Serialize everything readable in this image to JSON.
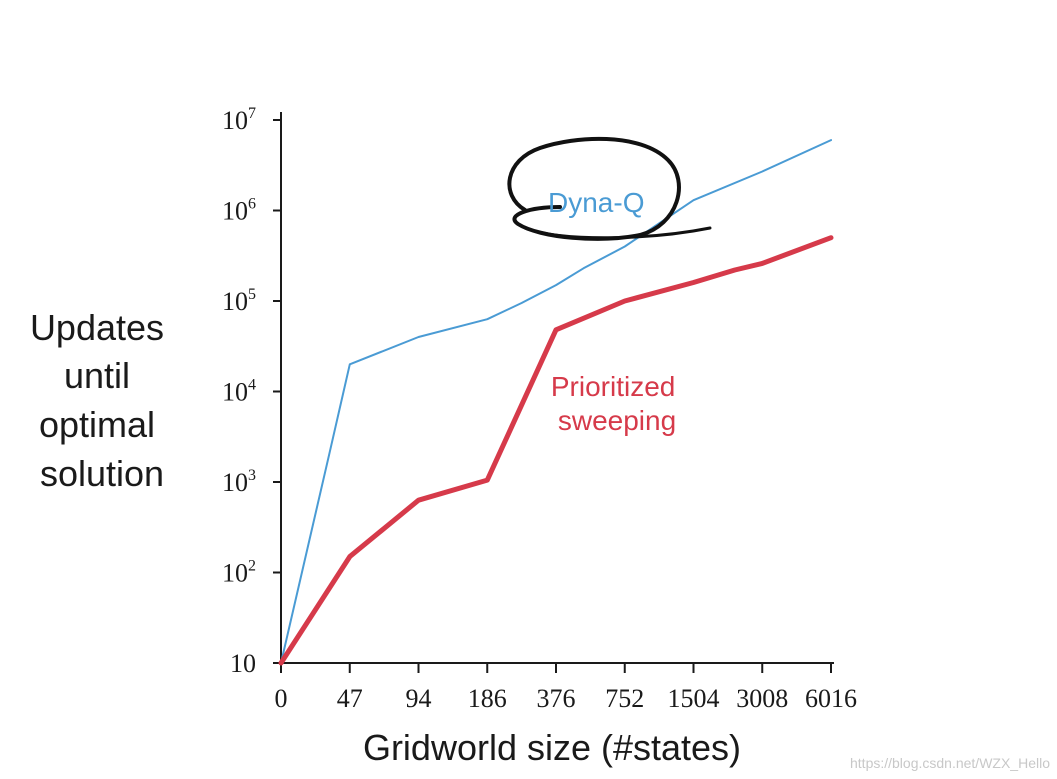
{
  "chart_data": {
    "type": "line",
    "title": "",
    "xlabel": "Gridworld size (#states)",
    "ylabel": "Updates until optimal solution",
    "ylabel_lines": [
      "Updates",
      "until",
      "optimal",
      "solution"
    ],
    "categories": [
      "0",
      "47",
      "94",
      "186",
      "376",
      "752",
      "1504",
      "3008",
      "6016"
    ],
    "y_scale": "log",
    "ylim": [
      10,
      10000000
    ],
    "y_ticks": [
      {
        "value": 10,
        "base": "10",
        "exp": ""
      },
      {
        "value": 100,
        "base": "10",
        "exp": "2"
      },
      {
        "value": 1000,
        "base": "10",
        "exp": "3"
      },
      {
        "value": 10000,
        "base": "10",
        "exp": "4"
      },
      {
        "value": 100000,
        "base": "10",
        "exp": "5"
      },
      {
        "value": 1000000,
        "base": "10",
        "exp": "6"
      },
      {
        "value": 10000000,
        "base": "10",
        "exp": "7"
      }
    ],
    "grid": false,
    "series": [
      {
        "name": "Dyna-Q",
        "color": "#4a9bd4",
        "points": [
          [
            0,
            10
          ],
          [
            0.7,
            2000
          ],
          [
            1,
            20000
          ],
          [
            2,
            40000
          ],
          [
            3,
            63000
          ],
          [
            3.5,
            95000
          ],
          [
            4,
            150000
          ],
          [
            4.4,
            230000
          ],
          [
            5,
            400000
          ],
          [
            6,
            1300000
          ],
          [
            7,
            2700000
          ],
          [
            8,
            6000000
          ]
        ]
      },
      {
        "name": "Prioritized sweeping",
        "name_lines": [
          "Prioritized",
          "sweeping"
        ],
        "color": "#d63a4a",
        "points": [
          [
            0,
            10
          ],
          [
            1,
            150
          ],
          [
            2,
            630
          ],
          [
            3,
            1050
          ],
          [
            4,
            48000
          ],
          [
            5,
            100000
          ],
          [
            6,
            160000
          ],
          [
            6.6,
            220000
          ],
          [
            7,
            260000
          ],
          [
            8,
            500000
          ]
        ]
      }
    ],
    "annotation": {
      "type": "hand-drawn circle",
      "target": "Dyna-Q",
      "color": "#000000"
    }
  },
  "watermark": "https://blog.csdn.net/WZX_Hello"
}
